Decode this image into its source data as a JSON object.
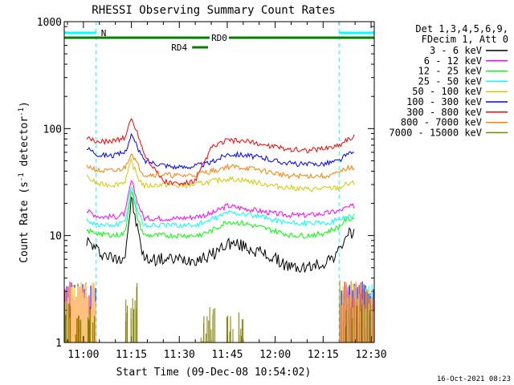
{
  "chart_data": {
    "type": "line",
    "title": "RHESSI Observing Summary Count Rates",
    "xlabel": "Start Time (09-Dec-08 10:54:02)",
    "ylabel": "Count Rate (s⁻¹ detector⁻¹)",
    "ylabel_parts": {
      "a": "Count Rate (s",
      "b": "-1",
      "c": " detector",
      "d": "-1",
      "e": ")"
    },
    "yscale": "log",
    "ylim": [
      1,
      1000
    ],
    "xlim": [
      "10:54",
      "12:31"
    ],
    "x_ticks": [
      "11:00",
      "11:15",
      "11:30",
      "11:45",
      "12:00",
      "12:15",
      "12:30"
    ],
    "y_ticks": [
      "1000",
      "100",
      "10",
      "1"
    ],
    "legend_header": [
      "Det 1,3,4,5,6,9,",
      "FDecim 1, Att 0"
    ],
    "legend_position": "right",
    "timestamp": "16-Oct-2021 08:23",
    "annotations": [
      {
        "label": "N",
        "type": "night",
        "color": "#00ffff",
        "intervals": [
          [
            "10:54",
            "11:04"
          ],
          [
            "12:20",
            "12:31"
          ]
        ]
      },
      {
        "label": "RD0",
        "type": "data-flag",
        "color": "#008000",
        "intervals": [
          [
            "10:54",
            "12:31"
          ]
        ]
      },
      {
        "label": "RD4",
        "type": "data-flag",
        "color": "#008000",
        "intervals": [
          [
            "11:34",
            "11:39"
          ]
        ]
      }
    ],
    "series": [
      {
        "name": "3 - 6 keV",
        "color": "#000000",
        "x": [
          "11:01",
          "11:05",
          "11:10",
          "11:13",
          "11:15",
          "11:17",
          "11:19",
          "11:25",
          "11:30",
          "11:35",
          "11:40",
          "11:45",
          "11:50",
          "11:55",
          "12:00",
          "12:05",
          "12:10",
          "12:15",
          "12:20",
          "12:22",
          "12:25"
        ],
        "y": [
          9.0,
          7.0,
          6.0,
          6.5,
          22,
          11,
          6.0,
          6.0,
          6.0,
          6.0,
          6.5,
          8.5,
          8.0,
          7.0,
          6.0,
          5.0,
          5.0,
          5.5,
          7.0,
          10,
          11
        ]
      },
      {
        "name": "6 - 12 keV",
        "color": "#ff00ff",
        "x": [
          "11:01",
          "11:05",
          "11:10",
          "11:13",
          "11:15",
          "11:17",
          "11:19",
          "11:25",
          "11:30",
          "11:35",
          "11:40",
          "11:45",
          "11:50",
          "11:55",
          "12:00",
          "12:05",
          "12:10",
          "12:15",
          "12:20",
          "12:22",
          "12:25"
        ],
        "y": [
          17,
          15,
          15,
          16,
          33,
          20,
          14.5,
          14.5,
          14.5,
          15,
          16,
          19,
          18,
          17,
          16,
          15.5,
          15.5,
          16,
          17,
          18,
          19
        ]
      },
      {
        "name": "12 - 25 keV",
        "color": "#00ff00",
        "x": [
          "11:01",
          "11:05",
          "11:10",
          "11:13",
          "11:15",
          "11:17",
          "11:19",
          "11:25",
          "11:30",
          "11:35",
          "11:40",
          "11:45",
          "11:50",
          "11:55",
          "12:00",
          "12:05",
          "12:10",
          "12:15",
          "12:20",
          "12:22",
          "12:25"
        ],
        "y": [
          11,
          10.5,
          10,
          10.5,
          27,
          14,
          10,
          10,
          10,
          10,
          11,
          13.5,
          13,
          12,
          11,
          10,
          10,
          10.5,
          12,
          14,
          14.5
        ]
      },
      {
        "name": "25 - 50 keV",
        "color": "#00ffff",
        "x": [
          "11:01",
          "11:05",
          "11:10",
          "11:13",
          "11:15",
          "11:17",
          "11:19",
          "11:25",
          "11:30",
          "11:35",
          "11:40",
          "11:45",
          "11:50",
          "11:55",
          "12:00",
          "12:05",
          "12:10",
          "12:15",
          "12:20",
          "12:22",
          "12:25"
        ],
        "y": [
          14,
          12.5,
          12.5,
          13.5,
          30,
          17,
          12.5,
          12.5,
          12.5,
          12.5,
          14,
          16.5,
          16,
          15,
          14,
          13,
          13,
          13,
          14,
          15,
          15.5
        ]
      },
      {
        "name": "50 - 100 keV",
        "color": "#d8c800",
        "x": [
          "11:01",
          "11:05",
          "11:10",
          "11:13",
          "11:15",
          "11:17",
          "11:19",
          "11:25",
          "11:30",
          "11:35",
          "11:40",
          "11:45",
          "11:50",
          "11:55",
          "12:00",
          "12:05",
          "12:10",
          "12:15",
          "12:20",
          "12:22",
          "12:25"
        ],
        "y": [
          35,
          30,
          30,
          32,
          50,
          35,
          29,
          30,
          29,
          30,
          32,
          34,
          33,
          31,
          29,
          28,
          27,
          27.5,
          28,
          30,
          31
        ]
      },
      {
        "name": "100 - 300 keV",
        "color": "#0000ff",
        "x": [
          "11:01",
          "11:05",
          "11:10",
          "11:13",
          "11:15",
          "11:17",
          "11:19",
          "11:25",
          "11:30",
          "11:35",
          "11:40",
          "11:45",
          "11:50",
          "11:55",
          "12:00",
          "12:05",
          "12:10",
          "12:15",
          "12:20",
          "12:22",
          "12:25"
        ],
        "y": [
          66,
          57,
          56,
          60,
          88,
          65,
          50,
          46,
          43,
          45,
          48,
          58,
          57,
          54,
          50,
          47,
          46,
          47,
          50,
          56,
          60
        ]
      },
      {
        "name": "300 - 800 keV",
        "color": "#ff0000",
        "x": [
          "11:01",
          "11:05",
          "11:10",
          "11:13",
          "11:15",
          "11:17",
          "11:19",
          "11:25",
          "11:30",
          "11:35",
          "11:40",
          "11:45",
          "11:50",
          "11:55",
          "12:00",
          "12:05",
          "12:10",
          "12:15",
          "12:20",
          "12:22",
          "12:25"
        ],
        "y": [
          80,
          75,
          78,
          82,
          125,
          90,
          58,
          32,
          30,
          32,
          66,
          78,
          76,
          72,
          67,
          64,
          63,
          65,
          70,
          78,
          85
        ]
      },
      {
        "name": "800 - 7000 keV",
        "color": "#ff8000",
        "x": [
          "11:01",
          "11:05",
          "11:10",
          "11:13",
          "11:15",
          "11:17",
          "11:19",
          "11:25",
          "11:30",
          "11:35",
          "11:40",
          "11:45",
          "11:50",
          "11:55",
          "12:00",
          "12:05",
          "12:10",
          "12:15",
          "12:20",
          "12:22",
          "12:25"
        ],
        "y": [
          45,
          40,
          40,
          43,
          60,
          45,
          37,
          37,
          36,
          37,
          40,
          44,
          43,
          41,
          38,
          36,
          36,
          36,
          38,
          42,
          44
        ]
      },
      {
        "name": "7000 - 15000 keV",
        "color": "#808000",
        "x": [
          "10:55",
          "10:58",
          "11:01",
          "11:03",
          "11:14",
          "11:16",
          "11:38",
          "11:40",
          "11:46",
          "11:49",
          "12:23",
          "12:26",
          "12:29"
        ],
        "y": [
          2,
          1.5,
          1.8,
          1.5,
          2.5,
          3,
          1.5,
          2,
          1.5,
          1.8,
          2,
          2.5,
          3
        ]
      }
    ]
  }
}
